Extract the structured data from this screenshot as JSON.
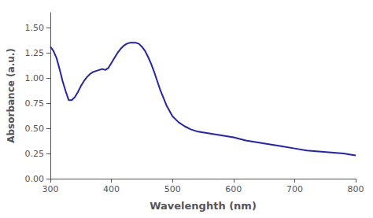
{
  "chart_data": {
    "type": "line",
    "xlabel": "Wavelenghth (nm)",
    "ylabel": "Absorbance (a.u.)",
    "x": [
      300,
      305,
      310,
      315,
      320,
      325,
      330,
      335,
      340,
      345,
      350,
      355,
      360,
      365,
      370,
      375,
      380,
      385,
      390,
      395,
      400,
      405,
      410,
      415,
      420,
      425,
      430,
      435,
      440,
      445,
      450,
      455,
      460,
      465,
      470,
      480,
      490,
      500,
      510,
      520,
      530,
      540,
      550,
      560,
      570,
      580,
      590,
      600,
      620,
      640,
      660,
      680,
      700,
      720,
      740,
      760,
      780,
      800
    ],
    "values": [
      1.31,
      1.27,
      1.2,
      1.09,
      0.97,
      0.87,
      0.78,
      0.78,
      0.81,
      0.86,
      0.92,
      0.97,
      1.01,
      1.04,
      1.06,
      1.07,
      1.08,
      1.09,
      1.08,
      1.1,
      1.15,
      1.2,
      1.25,
      1.29,
      1.32,
      1.34,
      1.35,
      1.35,
      1.35,
      1.34,
      1.31,
      1.27,
      1.21,
      1.14,
      1.06,
      0.88,
      0.73,
      0.62,
      0.56,
      0.52,
      0.49,
      0.47,
      0.46,
      0.45,
      0.44,
      0.43,
      0.42,
      0.41,
      0.38,
      0.36,
      0.34,
      0.32,
      0.3,
      0.28,
      0.27,
      0.26,
      0.25,
      0.23
    ],
    "color": "#2222bb",
    "xlim": [
      300,
      800
    ],
    "ylim": [
      0.0,
      1.65
    ],
    "xticks": [
      300,
      400,
      500,
      600,
      700,
      800
    ],
    "yticks": [
      {
        "value": 0.0,
        "label": "0.00"
      },
      {
        "value": 0.25,
        "label": "0.25"
      },
      {
        "value": 0.5,
        "label": "0.50"
      },
      {
        "value": 0.75,
        "label": "0.75"
      },
      {
        "value": 1.0,
        "label": "1.00"
      },
      {
        "value": 1.25,
        "label": "1.25"
      },
      {
        "value": 1.5,
        "label": "1.50"
      }
    ],
    "grid": false
  }
}
